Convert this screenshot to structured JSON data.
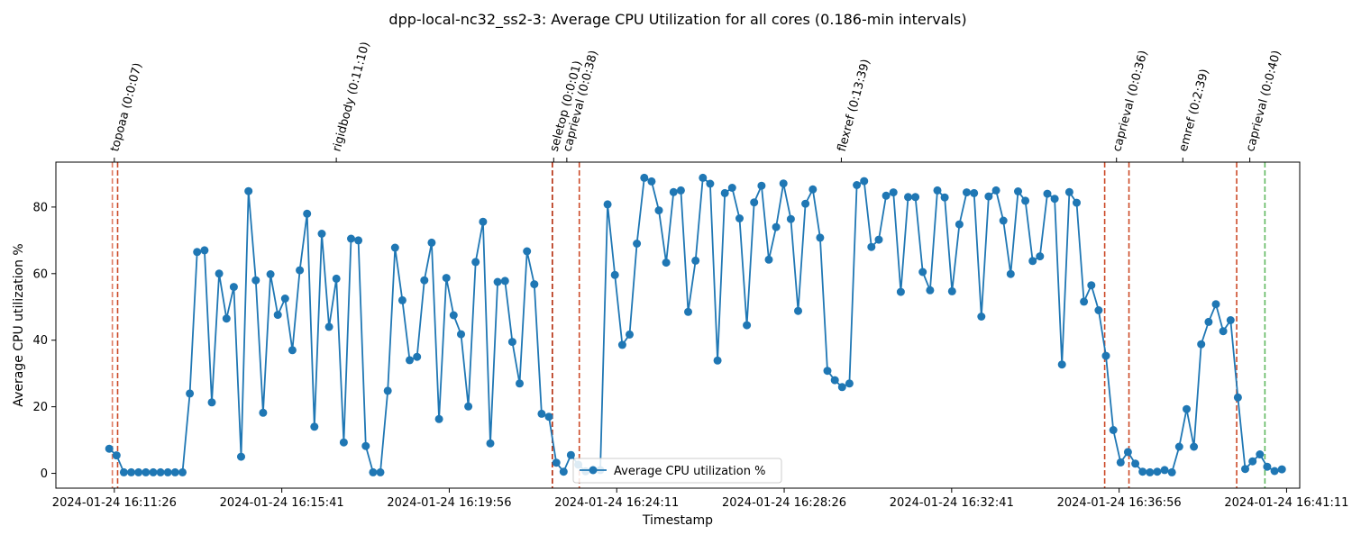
{
  "chart_data": {
    "type": "line",
    "title": "dpp-local-nc32_ss2-3: Average CPU Utilization for all cores (0.186-min intervals)",
    "xlabel": "Timestamp",
    "ylabel": "Average CPU utilization %",
    "ylim": [
      -4.45,
      93.5
    ],
    "yticks": [
      0,
      20,
      40,
      60,
      80
    ],
    "x_unit": "seconds after 2024-01-24 16:11:26",
    "xlim": [
      -89,
      1805
    ],
    "xticks": [
      {
        "x": 0,
        "label": "2024-01-24 16:11:26"
      },
      {
        "x": 255,
        "label": "2024-01-24 16:15:41"
      },
      {
        "x": 510,
        "label": "2024-01-24 16:19:56"
      },
      {
        "x": 765,
        "label": "2024-01-24 16:24:11"
      },
      {
        "x": 1020,
        "label": "2024-01-24 16:28:26"
      },
      {
        "x": 1275,
        "label": "2024-01-24 16:32:41"
      },
      {
        "x": 1530,
        "label": "2024-01-24 16:36:56"
      },
      {
        "x": 1785,
        "label": "2024-01-24 16:41:11"
      }
    ],
    "grid": false,
    "legend": {
      "position": "bottom-center"
    },
    "series": [
      {
        "name": "Average CPU utilization %",
        "color": "#1f77b4",
        "interval_seconds": 11.16,
        "start_x": -7.8,
        "values": [
          7.4,
          5.4,
          0.3,
          0.3,
          0.3,
          0.3,
          0.3,
          0.3,
          0.3,
          0.3,
          0.3,
          24,
          66.5,
          67,
          21.3,
          60,
          46.5,
          56,
          5,
          84.8,
          58,
          18.2,
          59.8,
          47.6,
          52.5,
          37,
          61,
          78,
          14,
          72,
          44,
          58.5,
          9.3,
          70.5,
          70,
          8.2,
          0.3,
          0.3,
          24.8,
          67.8,
          52,
          34,
          35,
          58,
          69.3,
          16.3,
          58.7,
          47.5,
          41.8,
          20.1,
          63.5,
          75.6,
          9,
          57.5,
          57.8,
          39.5,
          27,
          66.7,
          56.8,
          17.9,
          17,
          3.2,
          0.5,
          5.5,
          2.6,
          0.6,
          1,
          1,
          80.8,
          59.6,
          38.6,
          41.7,
          69,
          88.8,
          87.7,
          79,
          63.3,
          84.5,
          85,
          48.5,
          63.9,
          88.8,
          87,
          33.9,
          84.2,
          85.8,
          76.6,
          44.5,
          81.4,
          86.4,
          64.2,
          74,
          87.1,
          76.4,
          48.8,
          81,
          85.3,
          70.8,
          30.8,
          28,
          25.9,
          27,
          86.6,
          87.8,
          68,
          70.2,
          83.4,
          84.4,
          54.5,
          83,
          83,
          60.5,
          55,
          85,
          82.9,
          54.7,
          74.8,
          84.4,
          84.2,
          47.1,
          83.2,
          85,
          75.9,
          59.9,
          84.7,
          81.9,
          63.8,
          65.2,
          84,
          82.5,
          32.7,
          84.5,
          81.3,
          51.6,
          56.5,
          49,
          35.3,
          13,
          3.3,
          6.4,
          2.9,
          0.5,
          0.3,
          0.5,
          1,
          0.3,
          8,
          19.3,
          8,
          38.8,
          45.5,
          50.8,
          42.7,
          46,
          22.8,
          1.3,
          3.6,
          5.7,
          2,
          0.7,
          1.2
        ]
      }
    ],
    "annotations": [
      {
        "x": 0,
        "label": "topoaa (0:0:07)"
      },
      {
        "x": 338,
        "label": "rigidbody (0:11:10)"
      },
      {
        "x": 669,
        "label": "seletop (0:0:01)"
      },
      {
        "x": 689,
        "label": "caprieval (0:0:38)"
      },
      {
        "x": 1107,
        "label": "flexref (0:13:39)"
      },
      {
        "x": 1526,
        "label": "caprieval (0:0:36)"
      },
      {
        "x": 1627,
        "label": "emref (0:2:39)"
      },
      {
        "x": 1729,
        "label": "caprieval (0:0:40)"
      }
    ],
    "vlines": [
      {
        "x": -3,
        "color": "#e07b62"
      },
      {
        "x": 5,
        "color": "#cc4a28"
      },
      {
        "x": 667,
        "color": "#b32a0a"
      },
      {
        "x": 708,
        "color": "#cc4a28"
      },
      {
        "x": 1508,
        "color": "#cc4a28"
      },
      {
        "x": 1545,
        "color": "#cc4a28"
      },
      {
        "x": 1709,
        "color": "#cc4a28"
      },
      {
        "x": 1752,
        "color": "#5fb85f"
      }
    ]
  }
}
